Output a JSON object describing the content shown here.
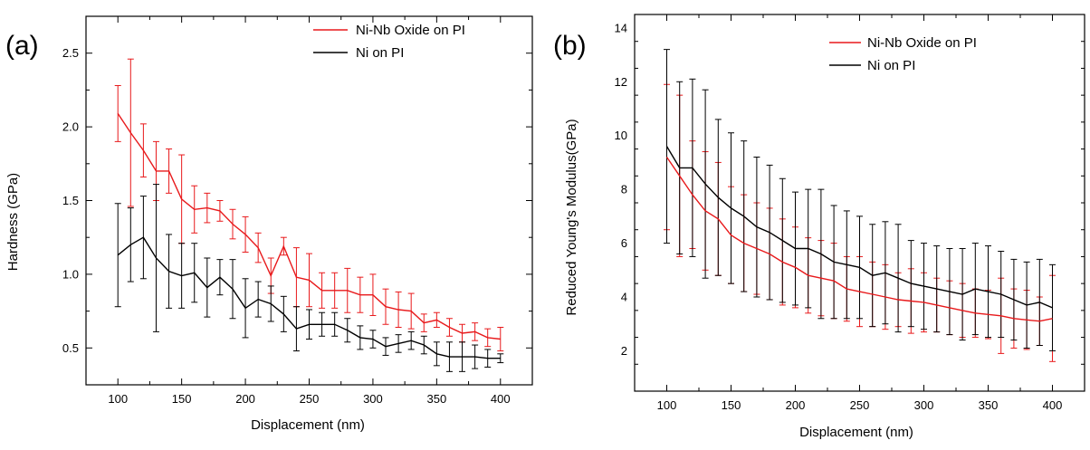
{
  "chart_data": [
    {
      "type": "line",
      "panel_label": "(a)",
      "xlabel": "Displacement (nm)",
      "ylabel": "Hardness (GPa)",
      "xlim": [
        75,
        425
      ],
      "ylim": [
        0.25,
        2.75
      ],
      "xticks": [
        100,
        150,
        200,
        250,
        300,
        350,
        400
      ],
      "yticks": [
        0.5,
        1.0,
        1.5,
        2.0,
        2.5
      ],
      "xtick_labels": [
        "100",
        "150",
        "200",
        "250",
        "300",
        "350",
        "400"
      ],
      "ytick_labels": [
        "0.5",
        "1.0",
        "1.5",
        "2.0",
        "2.5"
      ],
      "legend_position": "top-right",
      "grid": false,
      "x": [
        100,
        110,
        120,
        130,
        140,
        150,
        160,
        170,
        180,
        190,
        200,
        210,
        220,
        230,
        240,
        250,
        260,
        270,
        280,
        290,
        300,
        310,
        320,
        330,
        340,
        350,
        360,
        370,
        380,
        390,
        400
      ],
      "series": [
        {
          "name": "Ni-Nb Oxide on PI",
          "color": "#e8191b",
          "values": [
            2.09,
            1.96,
            1.84,
            1.7,
            1.7,
            1.51,
            1.44,
            1.45,
            1.43,
            1.34,
            1.27,
            1.18,
            0.99,
            1.19,
            0.98,
            0.96,
            0.89,
            0.89,
            0.89,
            0.86,
            0.86,
            0.78,
            0.76,
            0.75,
            0.67,
            0.69,
            0.64,
            0.6,
            0.61,
            0.57,
            0.56
          ],
          "errors": [
            0.19,
            0.5,
            0.18,
            0.2,
            0.15,
            0.3,
            0.16,
            0.1,
            0.07,
            0.1,
            0.12,
            0.1,
            0.12,
            0.06,
            0.2,
            0.18,
            0.12,
            0.12,
            0.15,
            0.12,
            0.14,
            0.12,
            0.12,
            0.12,
            0.06,
            0.05,
            0.06,
            0.06,
            0.06,
            0.06,
            0.08
          ]
        },
        {
          "name": "Ni on PI",
          "color": "#000000",
          "values": [
            1.13,
            1.2,
            1.25,
            1.11,
            1.02,
            0.99,
            1.01,
            0.91,
            0.98,
            0.9,
            0.77,
            0.83,
            0.8,
            0.73,
            0.63,
            0.66,
            0.66,
            0.66,
            0.62,
            0.57,
            0.56,
            0.51,
            0.53,
            0.55,
            0.52,
            0.46,
            0.44,
            0.44,
            0.44,
            0.43,
            0.43
          ],
          "errors": [
            0.35,
            0.25,
            0.28,
            0.5,
            0.25,
            0.22,
            0.2,
            0.2,
            0.12,
            0.2,
            0.2,
            0.12,
            0.12,
            0.12,
            0.15,
            0.1,
            0.08,
            0.08,
            0.08,
            0.08,
            0.06,
            0.06,
            0.06,
            0.06,
            0.06,
            0.08,
            0.1,
            0.1,
            0.08,
            0.06,
            0.03
          ]
        }
      ]
    },
    {
      "type": "line",
      "panel_label": "(b)",
      "xlabel": "Displacement (nm)",
      "ylabel": "Reduced Young's Modulus(GPa)",
      "xlim": [
        75,
        425
      ],
      "ylim": [
        0.5,
        14.5
      ],
      "xticks": [
        100,
        150,
        200,
        250,
        300,
        350,
        400
      ],
      "yticks": [
        2,
        4,
        6,
        8,
        10,
        12,
        14
      ],
      "xtick_labels": [
        "100",
        "150",
        "200",
        "250",
        "300",
        "350",
        "400"
      ],
      "ytick_labels": [
        "2",
        "4",
        "6",
        "8",
        "10",
        "12",
        "14"
      ],
      "legend_position": "top-right",
      "grid": false,
      "x": [
        100,
        110,
        120,
        130,
        140,
        150,
        160,
        170,
        180,
        190,
        200,
        210,
        220,
        230,
        240,
        250,
        260,
        270,
        280,
        290,
        300,
        310,
        320,
        330,
        340,
        350,
        360,
        370,
        380,
        390,
        400
      ],
      "series": [
        {
          "name": "Ni-Nb Oxide on PI",
          "color": "#e8191b",
          "values": [
            9.2,
            8.5,
            7.8,
            7.2,
            6.9,
            6.3,
            6.0,
            5.8,
            5.6,
            5.3,
            5.1,
            4.8,
            4.7,
            4.6,
            4.3,
            4.2,
            4.1,
            4.0,
            3.9,
            3.85,
            3.8,
            3.7,
            3.6,
            3.5,
            3.4,
            3.35,
            3.3,
            3.2,
            3.15,
            3.1,
            3.2
          ],
          "errors": [
            2.7,
            3.0,
            2.0,
            2.2,
            2.1,
            1.8,
            1.8,
            1.7,
            1.7,
            1.6,
            1.5,
            1.4,
            1.4,
            1.4,
            1.2,
            1.3,
            1.2,
            1.2,
            1.0,
            1.2,
            1.1,
            1.0,
            1.0,
            1.0,
            0.9,
            0.9,
            1.4,
            1.1,
            1.1,
            0.9,
            1.6
          ]
        },
        {
          "name": "Ni on PI",
          "color": "#000000",
          "values": [
            9.6,
            8.8,
            8.8,
            8.2,
            7.7,
            7.3,
            7.0,
            6.6,
            6.4,
            6.1,
            5.8,
            5.8,
            5.6,
            5.3,
            5.2,
            5.1,
            4.8,
            4.9,
            4.7,
            4.5,
            4.4,
            4.3,
            4.2,
            4.1,
            4.3,
            4.2,
            4.1,
            3.9,
            3.7,
            3.8,
            3.6
          ],
          "errors": [
            3.6,
            3.2,
            3.3,
            3.5,
            2.9,
            2.8,
            2.8,
            2.6,
            2.5,
            2.3,
            2.1,
            2.2,
            2.4,
            2.1,
            2.0,
            1.9,
            1.9,
            1.9,
            2.0,
            1.6,
            1.6,
            1.6,
            1.6,
            1.7,
            1.7,
            1.7,
            1.6,
            1.5,
            1.6,
            1.6,
            1.6
          ]
        }
      ]
    }
  ]
}
